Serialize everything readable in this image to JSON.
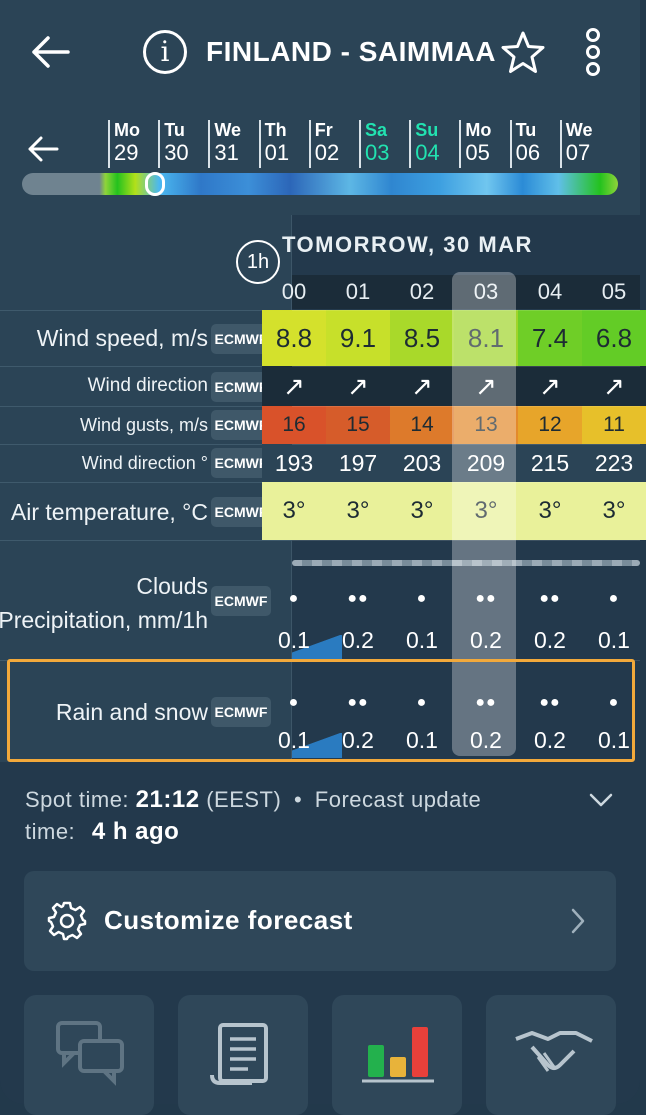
{
  "header": {
    "title": "FINLAND - SAIMMAA",
    "info_label": "i"
  },
  "days": [
    {
      "dw": "Mo",
      "dn": "29",
      "weekend": false
    },
    {
      "dw": "Tu",
      "dn": "30",
      "weekend": false
    },
    {
      "dw": "We",
      "dn": "31",
      "weekend": false
    },
    {
      "dw": "Th",
      "dn": "01",
      "weekend": false
    },
    {
      "dw": "Fr",
      "dn": "02",
      "weekend": false
    },
    {
      "dw": "Sa",
      "dn": "03",
      "weekend": true
    },
    {
      "dw": "Su",
      "dn": "04",
      "weekend": true
    },
    {
      "dw": "Mo",
      "dn": "05",
      "weekend": false
    },
    {
      "dw": "Tu",
      "dn": "06",
      "weekend": false
    },
    {
      "dw": "We",
      "dn": "07",
      "weekend": false
    }
  ],
  "table": {
    "interval": "1h",
    "date_heading": "TOMORROW, 30 MAR",
    "model": "ECMWF",
    "hours": [
      "00",
      "01",
      "02",
      "03",
      "04",
      "05"
    ],
    "rows": {
      "wind_speed": {
        "label": "Wind speed, m/s",
        "values": [
          "8.8",
          "9.1",
          "8.5",
          "8.1",
          "7.4",
          "6.8"
        ],
        "colors": [
          "#d4e12c",
          "#c7e02a",
          "#a9d92a",
          "#9fd52a",
          "#6fce27",
          "#63cc26"
        ]
      },
      "wind_direction": {
        "label": "Wind direction",
        "arrows": [
          "↗",
          "↗",
          "↗",
          "↗",
          "↗",
          "↗"
        ]
      },
      "wind_gusts": {
        "label": "Wind gusts, m/s",
        "values": [
          "16",
          "15",
          "14",
          "13",
          "12",
          "11"
        ],
        "colors": [
          "#d9522a",
          "#d65c2a",
          "#dd7a2b",
          "#e38a2b",
          "#e7a52a",
          "#e7c02a"
        ]
      },
      "wind_direction_deg": {
        "label": "Wind direction °",
        "values": [
          "193",
          "197",
          "203",
          "209",
          "215",
          "223"
        ]
      },
      "air_temperature": {
        "label": "Air temperature, °C",
        "values": [
          "3°",
          "3°",
          "3°",
          "3°",
          "3°",
          "3°"
        ],
        "color": "#e9f19a"
      },
      "clouds_precip": {
        "label_line1": "Clouds",
        "label_line2": "Precipitation, mm/1h",
        "values": [
          "0.1",
          "0.2",
          "0.1",
          "0.2",
          "0.2",
          "0.1"
        ]
      },
      "rain_snow": {
        "label": "Rain and snow",
        "values": [
          "0.1",
          "0.2",
          "0.1",
          "0.2",
          "0.2",
          "0.1"
        ]
      }
    }
  },
  "spot": {
    "prefix": "Spot time:",
    "time": "21:12",
    "zone": "(EEST)",
    "separator": "•",
    "update_label": "Forecast update",
    "update_label2": "time:",
    "update_value": "4 h ago"
  },
  "customize": {
    "label": "Customize forecast"
  },
  "icons": {
    "back": "arrow-left-icon",
    "info": "info-icon",
    "star": "star-icon",
    "menu": "kebab-menu-icon",
    "gear": "gear-icon",
    "chevron": "chevron-right-icon"
  }
}
